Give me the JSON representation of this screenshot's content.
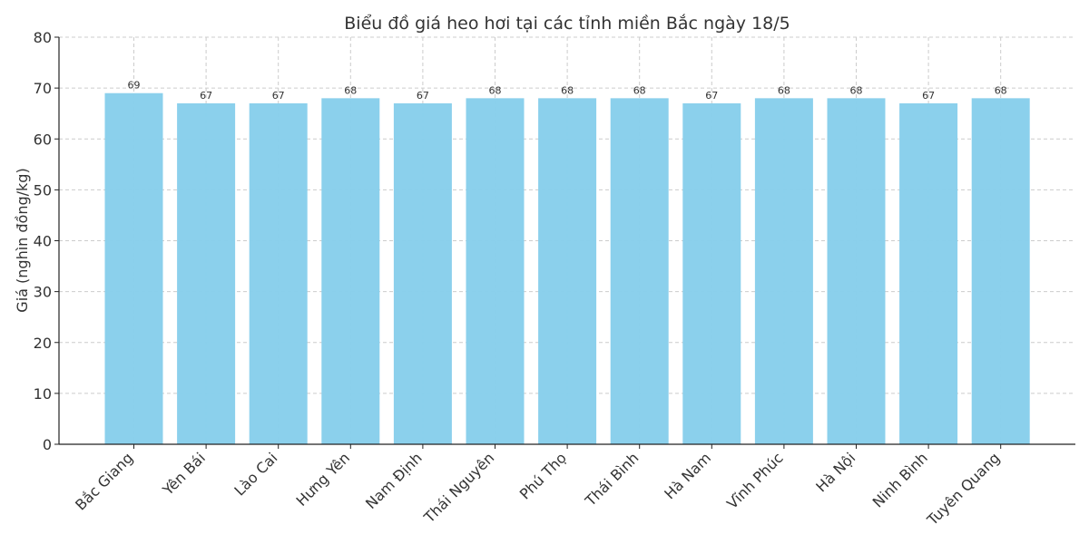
{
  "chart_data": {
    "type": "bar",
    "title": "Biểu đồ giá heo hơi tại các tỉnh miền Bắc ngày 18/5",
    "xlabel": "",
    "ylabel": "Giá (nghìn đồng/kg)",
    "ylim": [
      0,
      80
    ],
    "yticks": [
      0,
      10,
      20,
      30,
      40,
      50,
      60,
      70,
      80
    ],
    "grid": true,
    "bar_color": "#87CEEB",
    "categories": [
      "Bắc Giang",
      "Yên Bái",
      "Lào Cai",
      "Hưng Yên",
      "Nam Định",
      "Thái Nguyên",
      "Phú Thọ",
      "Thái Bình",
      "Hà Nam",
      "Vĩnh Phúc",
      "Hà Nội",
      "Ninh Bình",
      "Tuyên Quang"
    ],
    "values": [
      69,
      67,
      67,
      68,
      67,
      68,
      68,
      68,
      67,
      68,
      68,
      67,
      68
    ]
  }
}
